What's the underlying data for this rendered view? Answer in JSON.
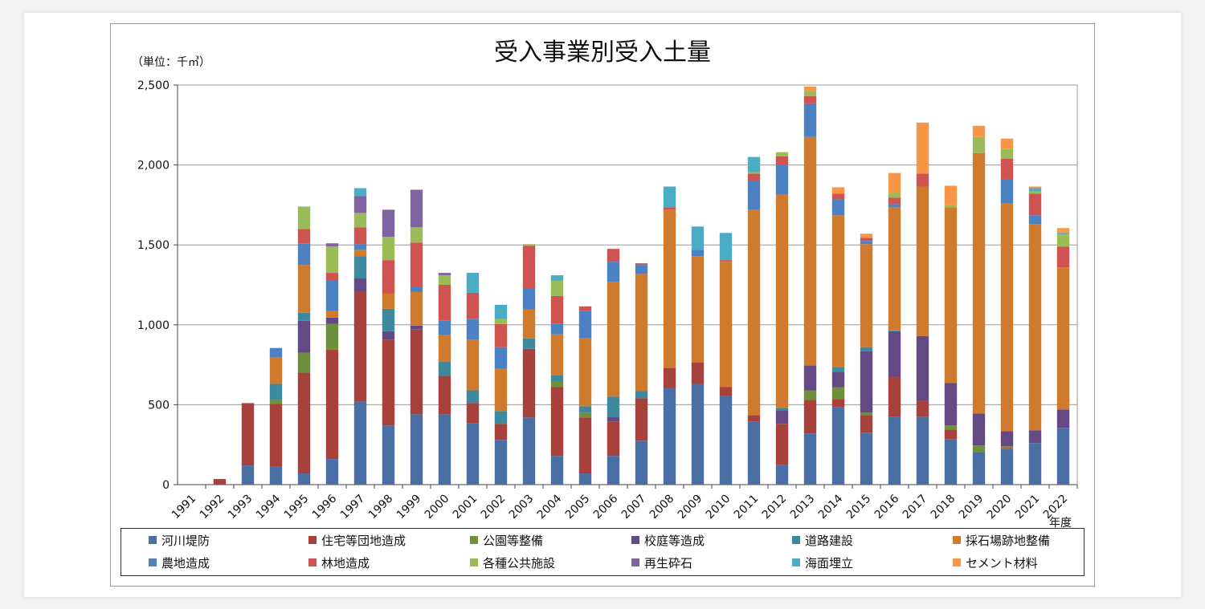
{
  "chart_data": {
    "type": "bar",
    "stacked": true,
    "title": "受入事業別受入土量",
    "unit_label": "（単位：千㎥）",
    "xlabel": "年度",
    "ylim": [
      0,
      2500
    ],
    "yticks": [
      0,
      500,
      1000,
      1500,
      2000,
      2500
    ],
    "ytick_labels": [
      "0",
      "500",
      "1,000",
      "1,500",
      "2,000",
      "2,500"
    ],
    "grid": true,
    "legend_position": "bottom",
    "categories": [
      "1991",
      "1992",
      "1993",
      "1994",
      "1995",
      "1996",
      "1997",
      "1998",
      "1999",
      "2000",
      "2001",
      "2002",
      "2003",
      "2004",
      "2005",
      "2006",
      "2007",
      "2008",
      "2009",
      "2010",
      "2011",
      "2012",
      "2013",
      "2014",
      "2015",
      "2016",
      "2017",
      "2018",
      "2019",
      "2020",
      "2021",
      "2022"
    ],
    "series": [
      {
        "name": "河川堤防",
        "color": "#4a6fa5",
        "values": [
          0,
          0,
          120,
          115,
          70,
          160,
          520,
          370,
          440,
          440,
          385,
          280,
          420,
          180,
          70,
          180,
          275,
          605,
          630,
          555,
          395,
          125,
          320,
          485,
          325,
          425,
          425,
          285,
          205,
          225,
          260,
          355
        ]
      },
      {
        "name": "住宅等団地造成",
        "color": "#a8403c",
        "values": [
          0,
          35,
          390,
          390,
          630,
          685,
          690,
          535,
          530,
          240,
          125,
          100,
          430,
          430,
          350,
          215,
          265,
          125,
          135,
          55,
          40,
          255,
          210,
          50,
          110,
          250,
          100,
          60,
          0,
          5,
          0,
          0
        ]
      },
      {
        "name": "公園等整備",
        "color": "#6e8f3c",
        "values": [
          0,
          0,
          0,
          25,
          125,
          160,
          0,
          0,
          0,
          0,
          0,
          0,
          0,
          35,
          30,
          0,
          0,
          0,
          0,
          0,
          0,
          0,
          60,
          75,
          15,
          0,
          0,
          25,
          40,
          10,
          0,
          0
        ]
      },
      {
        "name": "校庭等造成",
        "color": "#634a85",
        "values": [
          0,
          0,
          0,
          0,
          200,
          40,
          80,
          55,
          25,
          0,
          0,
          0,
          0,
          0,
          0,
          30,
          0,
          0,
          0,
          0,
          0,
          85,
          155,
          95,
          385,
          285,
          405,
          265,
          200,
          95,
          80,
          115
        ]
      },
      {
        "name": "道路建設",
        "color": "#3d8a9e",
        "values": [
          0,
          0,
          0,
          100,
          50,
          0,
          140,
          140,
          0,
          90,
          80,
          80,
          65,
          40,
          40,
          125,
          45,
          0,
          0,
          0,
          0,
          15,
          0,
          30,
          25,
          5,
          0,
          0,
          0,
          0,
          0,
          0
        ]
      },
      {
        "name": "採石場跡地整備",
        "color": "#d07a2d",
        "values": [
          0,
          0,
          0,
          165,
          300,
          40,
          40,
          95,
          210,
          165,
          315,
          265,
          180,
          255,
          425,
          720,
          735,
          990,
          665,
          785,
          1285,
          1335,
          1430,
          950,
          645,
          770,
          935,
          1100,
          1630,
          1425,
          1290,
          890
        ]
      },
      {
        "name": "農地造成",
        "color": "#4c82c4",
        "values": [
          0,
          0,
          0,
          60,
          135,
          195,
          35,
          0,
          30,
          90,
          130,
          135,
          135,
          65,
          170,
          125,
          55,
          0,
          40,
          0,
          180,
          185,
          210,
          100,
          20,
          20,
          0,
          0,
          0,
          150,
          55,
          0
        ]
      },
      {
        "name": "林地造成",
        "color": "#cf5451",
        "values": [
          0,
          0,
          0,
          0,
          90,
          45,
          105,
          210,
          280,
          225,
          165,
          145,
          265,
          175,
          30,
          80,
          10,
          15,
          0,
          10,
          45,
          55,
          45,
          35,
          20,
          40,
          80,
          0,
          0,
          130,
          135,
          130
        ]
      },
      {
        "name": "各種公共施設",
        "color": "#9bbb59",
        "values": [
          0,
          0,
          0,
          0,
          140,
          165,
          90,
          145,
          95,
          60,
          0,
          30,
          10,
          95,
          0,
          0,
          0,
          0,
          0,
          0,
          10,
          25,
          30,
          0,
          0,
          30,
          0,
          15,
          100,
          60,
          15,
          75
        ]
      },
      {
        "name": "再生砕石",
        "color": "#8064a2",
        "values": [
          0,
          0,
          0,
          0,
          0,
          20,
          105,
          170,
          235,
          15,
          0,
          0,
          0,
          0,
          0,
          0,
          0,
          0,
          0,
          0,
          0,
          0,
          0,
          0,
          0,
          0,
          0,
          0,
          0,
          0,
          0,
          0
        ]
      },
      {
        "name": "海面埋立",
        "color": "#4bacc6",
        "values": [
          0,
          0,
          0,
          0,
          0,
          0,
          50,
          0,
          0,
          0,
          125,
          90,
          0,
          35,
          0,
          0,
          0,
          130,
          145,
          170,
          95,
          0,
          0,
          0,
          0,
          0,
          0,
          0,
          0,
          0,
          20,
          10
        ]
      },
      {
        "name": "セメント材料",
        "color": "#f79646",
        "values": [
          0,
          0,
          0,
          0,
          0,
          0,
          0,
          0,
          0,
          0,
          0,
          0,
          0,
          0,
          0,
          0,
          0,
          0,
          0,
          0,
          0,
          0,
          30,
          40,
          25,
          125,
          320,
          120,
          70,
          65,
          10,
          30
        ]
      }
    ]
  }
}
